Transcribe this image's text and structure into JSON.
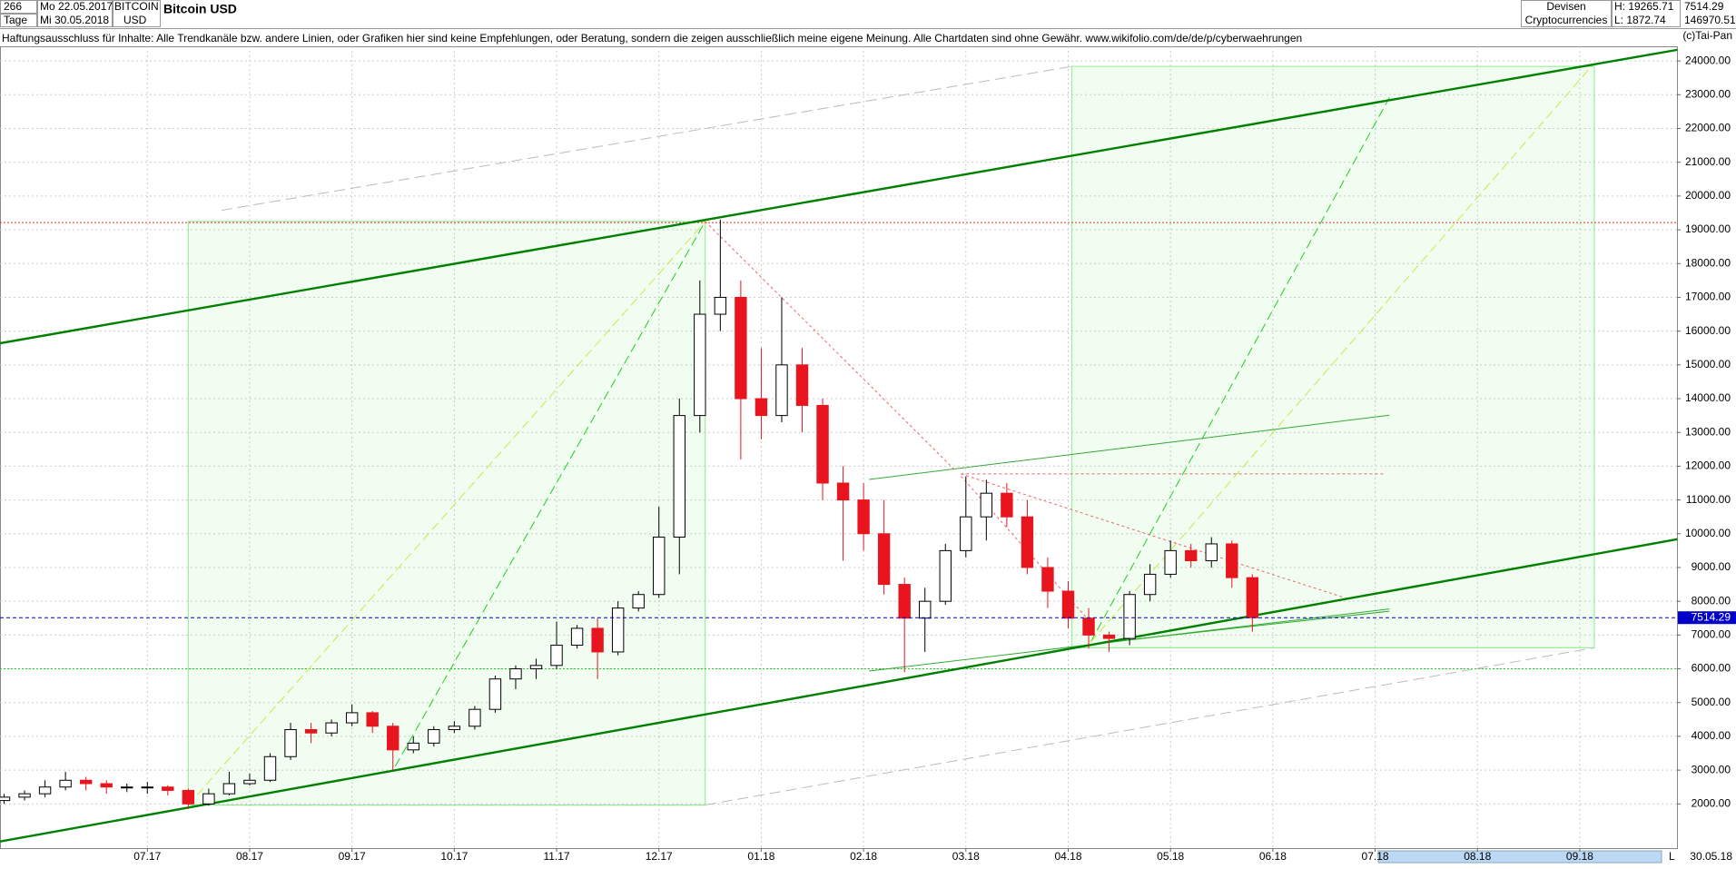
{
  "header": {
    "bars": "266",
    "from": "Mo 22.05.2017",
    "period": "Tage",
    "to": "Mi 30.05.2018",
    "symbol": "BITCOIN",
    "currency": "USD",
    "market": "Devisen",
    "group": "Cryptocurrencies",
    "high": "H: 19265.71",
    "low": "L: 1872.74",
    "volume": "146970.51",
    "disclaimer": "Haftungsausschluss für Inhalte: Alle Trendkanäle bzw. andere Linien, oder Grafiken hier sind keine Empfehlungen, oder Beratung, sondern die zeigen ausschließlich meine eigene Meinung. Alle Chartdaten sind ohne Gewähr.  www.wikifolio.com/de/de/p/cyberwaehrungen",
    "copyright": "(c)Tai-Pan",
    "scroll_label": "L",
    "end_date": "30.05.18"
  },
  "chart_data": {
    "type": "candlestick",
    "title": "Bitcoin USD",
    "x": [
      -1.4,
      -1.2,
      -1.0,
      -0.8,
      -0.6,
      -0.4,
      -0.2,
      0.0,
      0.2,
      0.4,
      0.6,
      0.8,
      1.0,
      1.2,
      1.4,
      1.6,
      1.8,
      2.0,
      2.2,
      2.4,
      2.6,
      2.8,
      3.0,
      3.2,
      3.4,
      3.6,
      3.8,
      4.0,
      4.2,
      4.4,
      4.6,
      4.8,
      5.0,
      5.2,
      5.4,
      5.6,
      5.8,
      6.0,
      6.2,
      6.4,
      6.6,
      6.8,
      7.0,
      7.2,
      7.4,
      7.6,
      7.8,
      8.0,
      8.2,
      8.4,
      8.6,
      8.8,
      9.0,
      9.2,
      9.4,
      9.6,
      9.8,
      10.0,
      10.2,
      10.4,
      10.6,
      10.8
    ],
    "open": [
      2100,
      2200,
      2300,
      2500,
      2700,
      2600,
      2500,
      2500,
      2500,
      2400,
      2000,
      2300,
      2600,
      2700,
      3400,
      4200,
      4100,
      4400,
      4700,
      4300,
      3600,
      3800,
      4200,
      4300,
      4800,
      5700,
      6000,
      6100,
      6700,
      7200,
      6500,
      7800,
      8200,
      9900,
      13500,
      16500,
      17000,
      14000,
      13500,
      15000,
      13800,
      11500,
      11000,
      10000,
      8500,
      7500,
      8000,
      9500,
      10500,
      11200,
      10500,
      9000,
      8300,
      7500,
      7000,
      6900,
      8200,
      8800,
      9500,
      9200,
      9700,
      8700
    ],
    "high": [
      2300,
      2400,
      2700,
      2950,
      2800,
      2700,
      2600,
      2650,
      2550,
      2450,
      2450,
      2950,
      2900,
      3500,
      4400,
      4400,
      4500,
      4950,
      4750,
      4400,
      4000,
      4300,
      4450,
      4900,
      5800,
      6100,
      6300,
      7400,
      7300,
      7500,
      8000,
      8300,
      10800,
      14000,
      17500,
      19300,
      17500,
      15500,
      17000,
      15500,
      14000,
      12000,
      11500,
      11000,
      8700,
      8400,
      9700,
      11700,
      11600,
      11500,
      11000,
      9300,
      8600,
      7800,
      7100,
      8300,
      9100,
      9800,
      9700,
      9900,
      9800,
      8800
    ],
    "low": [
      2000,
      2100,
      2200,
      2400,
      2400,
      2300,
      2350,
      2300,
      2250,
      1850,
      1950,
      2250,
      2550,
      2650,
      3300,
      3800,
      4000,
      4300,
      4100,
      3000,
      3500,
      3700,
      4100,
      4200,
      4700,
      5400,
      5700,
      6000,
      6600,
      5700,
      6400,
      7700,
      8100,
      8800,
      13000,
      16000,
      12200,
      12800,
      13300,
      13000,
      11000,
      9200,
      9500,
      8200,
      5900,
      6500,
      7900,
      9300,
      9800,
      10200,
      8800,
      7800,
      7200,
      6600,
      6500,
      6700,
      8000,
      8700,
      9000,
      9000,
      8400,
      7100
    ],
    "close": [
      2200,
      2300,
      2500,
      2700,
      2600,
      2500,
      2500,
      2500,
      2400,
      2000,
      2300,
      2600,
      2700,
      3400,
      4200,
      4100,
      4400,
      4700,
      4300,
      3600,
      3800,
      4200,
      4300,
      4800,
      5700,
      6000,
      6100,
      6700,
      7200,
      6500,
      7800,
      8200,
      9900,
      13500,
      16500,
      17000,
      14000,
      13500,
      15000,
      13800,
      11500,
      11000,
      10000,
      8500,
      7500,
      8000,
      9500,
      10500,
      11200,
      10500,
      9000,
      8300,
      7500,
      7000,
      6900,
      8200,
      8800,
      9500,
      9200,
      9700,
      8700,
      7514.29
    ],
    "up_color": "#ffffff",
    "down_color": "#e8141e",
    "outline_color": "#000000",
    "last_color": "#0000c8",
    "xlim": [
      -1.44,
      14.95
    ],
    "xticks": [
      {
        "value": 0,
        "label": "07.17"
      },
      {
        "value": 1,
        "label": "08.17"
      },
      {
        "value": 2,
        "label": "09.17"
      },
      {
        "value": 3,
        "label": "10.17"
      },
      {
        "value": 4,
        "label": "11.17"
      },
      {
        "value": 5,
        "label": "12.17"
      },
      {
        "value": 6,
        "label": "01.18"
      },
      {
        "value": 7,
        "label": "02.18"
      },
      {
        "value": 8,
        "label": "03.18"
      },
      {
        "value": 9,
        "label": "04.18"
      },
      {
        "value": 10,
        "label": "05.18"
      },
      {
        "value": 11,
        "label": "06.18"
      },
      {
        "value": 12,
        "label": "07.18"
      },
      {
        "value": 13,
        "label": "08.18"
      },
      {
        "value": 14,
        "label": "09.18"
      }
    ],
    "ylim": [
      691,
      24433
    ],
    "yticks": [
      {
        "value": 2000,
        "label": "2000.00"
      },
      {
        "value": 3000,
        "label": "3000.00"
      },
      {
        "value": 4000,
        "label": "4000.00"
      },
      {
        "value": 5000,
        "label": "5000.00"
      },
      {
        "value": 6000,
        "label": "6000.00"
      },
      {
        "value": 7000,
        "label": "7000.00"
      },
      {
        "value": 8000,
        "label": "8000.00"
      },
      {
        "value": 9000,
        "label": "9000.00"
      },
      {
        "value": 10000,
        "label": "10000.00"
      },
      {
        "value": 11000,
        "label": "11000.00"
      },
      {
        "value": 12000,
        "label": "12000.00"
      },
      {
        "value": 13000,
        "label": "13000.00"
      },
      {
        "value": 14000,
        "label": "14000.00"
      },
      {
        "value": 15000,
        "label": "15000.00"
      },
      {
        "value": 16000,
        "label": "16000.00"
      },
      {
        "value": 17000,
        "label": "17000.00"
      },
      {
        "value": 18000,
        "label": "18000.00"
      },
      {
        "value": 19000,
        "label": "19000.00"
      },
      {
        "value": 20000,
        "label": "20000.00"
      },
      {
        "value": 21000,
        "label": "21000.00"
      },
      {
        "value": 22000,
        "label": "22000.00"
      },
      {
        "value": 23000,
        "label": "23000.00"
      },
      {
        "value": 24000,
        "label": "24000.00"
      }
    ],
    "grid": true
  }
}
